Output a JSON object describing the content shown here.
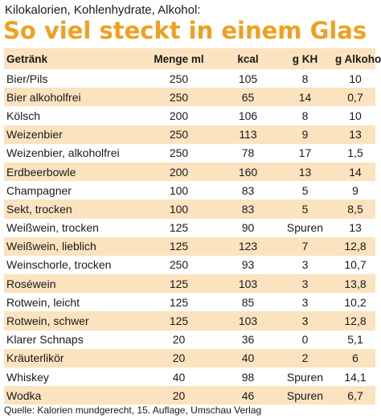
{
  "subtitle": "Kilokalorien, Kohlenhydrate, Alkohol:",
  "title": "So viel steckt in einem Glas",
  "table": {
    "headers": {
      "name": "Getränk",
      "menge": "Menge ml",
      "kcal": "kcal",
      "kh": "g KH",
      "alk": "g Alkohol"
    },
    "rows": [
      {
        "name": "Bier/Pils",
        "menge": "250",
        "kcal": "105",
        "kh": "8",
        "alk": "10"
      },
      {
        "name": "Bier alkoholfrei",
        "menge": "250",
        "kcal": "65",
        "kh": "14",
        "alk": "0,7"
      },
      {
        "name": "Kölsch",
        "menge": "200",
        "kcal": "106",
        "kh": "8",
        "alk": "10"
      },
      {
        "name": "Weizenbier",
        "menge": "250",
        "kcal": "113",
        "kh": "9",
        "alk": "13"
      },
      {
        "name": "Weizenbier, alkoholfrei",
        "menge": "250",
        "kcal": "78",
        "kh": "17",
        "alk": "1,5"
      },
      {
        "name": "Erdbeerbowle",
        "menge": "200",
        "kcal": "160",
        "kh": "13",
        "alk": "14"
      },
      {
        "name": "Champagner",
        "menge": "100",
        "kcal": "83",
        "kh": "5",
        "alk": "9"
      },
      {
        "name": "Sekt, trocken",
        "menge": "100",
        "kcal": "83",
        "kh": "5",
        "alk": "8,5"
      },
      {
        "name": "Weißwein, trocken",
        "menge": "125",
        "kcal": "90",
        "kh": "Spuren",
        "alk": "13"
      },
      {
        "name": "Weißwein, lieblich",
        "menge": "125",
        "kcal": "123",
        "kh": "7",
        "alk": "12,8"
      },
      {
        "name": "Weinschorle, trocken",
        "menge": "250",
        "kcal": "93",
        "kh": "3",
        "alk": "10,7"
      },
      {
        "name": "Roséwein",
        "menge": "125",
        "kcal": "103",
        "kh": "3",
        "alk": "13,8"
      },
      {
        "name": "Rotwein, leicht",
        "menge": "125",
        "kcal": "85",
        "kh": "3",
        "alk": "10,2"
      },
      {
        "name": "Rotwein, schwer",
        "menge": "125",
        "kcal": "103",
        "kh": "3",
        "alk": "12,8"
      },
      {
        "name": "Klarer Schnaps",
        "menge": "20",
        "kcal": "36",
        "kh": "0",
        "alk": "5,1"
      },
      {
        "name": "Kräuterlikör",
        "menge": "20",
        "kcal": "40",
        "kh": "2",
        "alk": "6"
      },
      {
        "name": "Whiskey",
        "menge": "40",
        "kcal": "98",
        "kh": "Spuren",
        "alk": "14,1"
      },
      {
        "name": "Wodka",
        "menge": "20",
        "kcal": "46",
        "kh": "Spuren",
        "alk": "6,7"
      }
    ]
  },
  "source": "Quelle: Kalorien mundgerecht, 15. Auflage, Umschau Verlag",
  "colors": {
    "title": "#f0a020",
    "stripe": "#fbe3bf",
    "text": "#1a1a1a"
  }
}
